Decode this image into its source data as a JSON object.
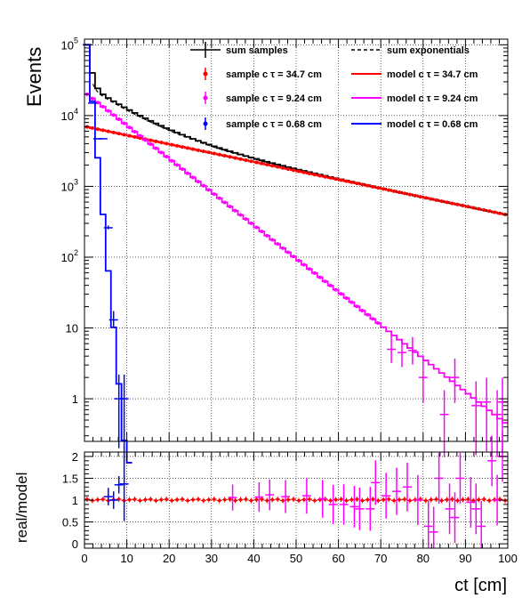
{
  "chart_data": [
    {
      "type": "histogram",
      "panel": "main",
      "ylabel": "Events",
      "yscale": "log",
      "ylim": [
        0.25,
        120000
      ],
      "xlim": [
        0,
        100
      ],
      "grid": true,
      "legend_position": "top",
      "yticks": [
        {
          "value": 100000,
          "base": "10",
          "exp": "5"
        },
        {
          "value": 10000,
          "base": "10",
          "exp": "4"
        },
        {
          "value": 1000,
          "base": "10",
          "exp": "3"
        },
        {
          "value": 100,
          "base": "10",
          "exp": "2"
        },
        {
          "value": 10,
          "base": "10",
          "exp": ""
        },
        {
          "value": 1,
          "base": "1",
          "exp": ""
        }
      ],
      "legend": [
        {
          "label": "sum samples",
          "color": "#000000",
          "style": "errorbar"
        },
        {
          "label": "sum exponentials",
          "color": "#000000",
          "style": "dashed"
        },
        {
          "label": "sample c τ = 34.7 cm",
          "color": "#ff0000",
          "style": "marker"
        },
        {
          "label": "model c τ = 34.7 cm",
          "color": "#ff0000",
          "style": "line"
        },
        {
          "label": "sample c τ = 9.24 cm",
          "color": "#ff00ff",
          "style": "marker"
        },
        {
          "label": "model c τ = 9.24 cm",
          "color": "#ff00ff",
          "style": "line"
        },
        {
          "label": "sample c τ = 0.68 cm",
          "color": "#0000ff",
          "style": "marker"
        },
        {
          "label": "model c τ = 0.68 cm",
          "color": "#0000ff",
          "style": "line"
        }
      ],
      "series": [
        {
          "name": "sum samples",
          "color": "#000000",
          "bin_width": 1.25,
          "N0": 100000,
          "components": [
            [
              6900,
              34.7
            ],
            [
              20000,
              9.24
            ],
            [
              100000,
              0.68
            ]
          ]
        },
        {
          "name": "model c τ = 34.7 cm",
          "color": "#ff0000",
          "bin_width": 1.25,
          "N0": 6900,
          "ctau": 34.7
        },
        {
          "name": "model c τ = 9.24 cm",
          "color": "#ff00ff",
          "bin_width": 1.25,
          "N0": 20000,
          "ctau": 9.24
        },
        {
          "name": "model c τ = 0.68 cm",
          "color": "#0000ff",
          "bin_width": 1.25,
          "N0": 100000,
          "ctau": 0.68
        }
      ],
      "sample_points": [
        {
          "name": "sample c τ = 0.68 cm",
          "color": "#0000ff",
          "x": [
            0.625,
            1.875,
            3.125,
            4.375,
            5.625,
            6.875,
            8.125,
            9.375
          ],
          "y": [
            100000,
            15000,
            4700,
            4700,
            260,
            13,
            1,
            1
          ]
        },
        {
          "name": "sample c τ = 9.24 cm",
          "color": "#ff00ff",
          "x": [
            72.5,
            75,
            77.5,
            80,
            85,
            87.5,
            92.5,
            95,
            97.5,
            98.75
          ],
          "y": [
            5,
            4.5,
            4.8,
            2,
            0.6,
            2,
            0.8,
            0.9,
            0.6,
            0.9
          ]
        }
      ]
    },
    {
      "type": "scatter",
      "panel": "ratio",
      "ylabel": "real/model",
      "xlabel": "ct [cm]",
      "ylim": [
        -0.1,
        2.1
      ],
      "xlim": [
        0,
        100
      ],
      "grid": true,
      "yticks": [
        0,
        0.5,
        1,
        1.5,
        2
      ],
      "yticklabels": [
        "0",
        "0.5",
        "1",
        "1.5",
        "2"
      ],
      "xticks": [
        0,
        10,
        20,
        30,
        40,
        50,
        60,
        70,
        80,
        90,
        100
      ],
      "xticklabels": [
        "0",
        "10",
        "20",
        "30",
        "40",
        "50",
        "60",
        "70",
        "80",
        "90",
        "100"
      ],
      "series": [
        {
          "name": "sample c τ = 34.7 cm",
          "color": "#ff0000",
          "value": 1.0
        },
        {
          "name": "sample c τ = 0.68 cm",
          "color": "#0000ff",
          "x": [
            5.625,
            6.875,
            8.125,
            9.375
          ],
          "y": [
            1.08,
            1.0,
            1.35,
            1.37
          ]
        },
        {
          "name": "sample c τ = 9.24 cm",
          "color": "#ff00ff",
          "x": [
            35,
            41.25,
            43.75,
            47.5,
            52.5,
            56.25,
            58.75,
            61.25,
            63.75,
            65,
            67.5,
            68.75,
            71.25,
            73.75,
            76.25,
            78.75,
            81.25,
            82.5,
            83.75,
            86.25,
            87.5,
            88.75,
            91.25,
            92.5,
            93.75,
            96.25,
            97.5,
            98.75
          ],
          "y": [
            1.06,
            1.07,
            1.12,
            1.08,
            1.1,
            1.03,
            0.9,
            0.9,
            0.85,
            0.8,
            0.8,
            1.4,
            1.1,
            1.2,
            1.3,
            1.0,
            0.4,
            0.27,
            1.5,
            0.8,
            0.6,
            1.5,
            0.95,
            0.8,
            0.4,
            1.9,
            1.0,
            2.0
          ]
        }
      ]
    }
  ]
}
